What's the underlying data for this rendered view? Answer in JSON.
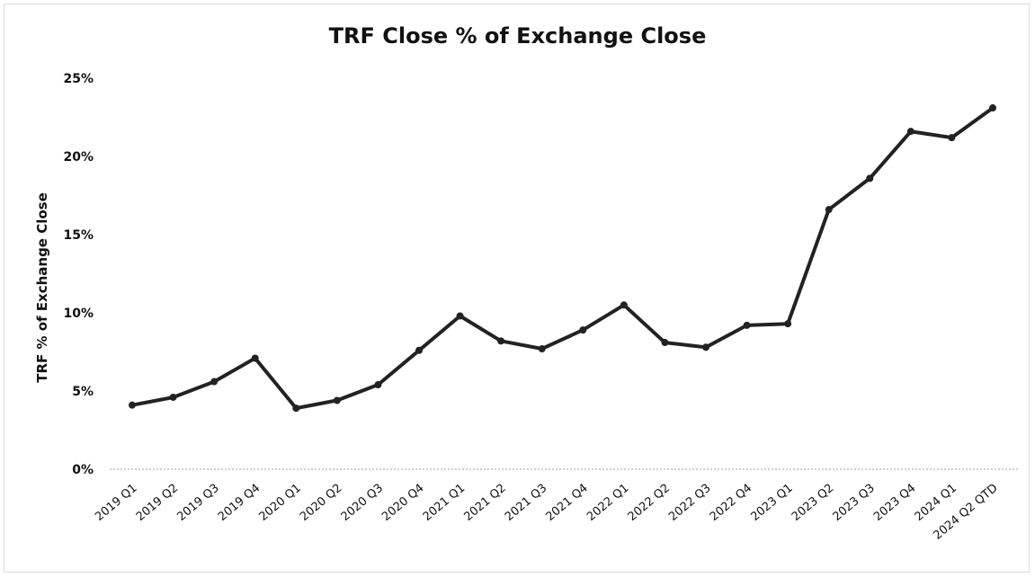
{
  "chart_data": {
    "type": "line",
    "title": "TRF Close % of Exchange Close",
    "xlabel": "",
    "ylabel": "TRF % of Exchange Close",
    "ylim": [
      0,
      25
    ],
    "y_ticks": [
      "0%",
      "5%",
      "10%",
      "15%",
      "20%",
      "25%"
    ],
    "y_tick_values": [
      0,
      5,
      10,
      15,
      20,
      25
    ],
    "grid": false,
    "legend": "none",
    "line_color": "#222222",
    "categories": [
      "2019 Q1",
      "2019 Q2",
      "2019 Q3",
      "2019 Q4",
      "2020 Q1",
      "2020 Q2",
      "2020 Q3",
      "2020 Q4",
      "2021 Q1",
      "2021 Q2",
      "2021 Q3",
      "2021 Q4",
      "2022 Q1",
      "2022 Q2",
      "2022 Q3",
      "2022 Q4",
      "2023 Q1",
      "2023 Q2",
      "2023 Q3",
      "2023 Q4",
      "2024 Q1",
      "2024 Q2 QTD"
    ],
    "values": [
      4.1,
      4.6,
      5.6,
      7.1,
      3.9,
      4.4,
      5.4,
      7.6,
      9.8,
      8.2,
      7.7,
      8.9,
      10.5,
      8.1,
      7.8,
      9.2,
      9.3,
      16.6,
      18.6,
      21.6,
      21.2,
      23.1
    ]
  }
}
